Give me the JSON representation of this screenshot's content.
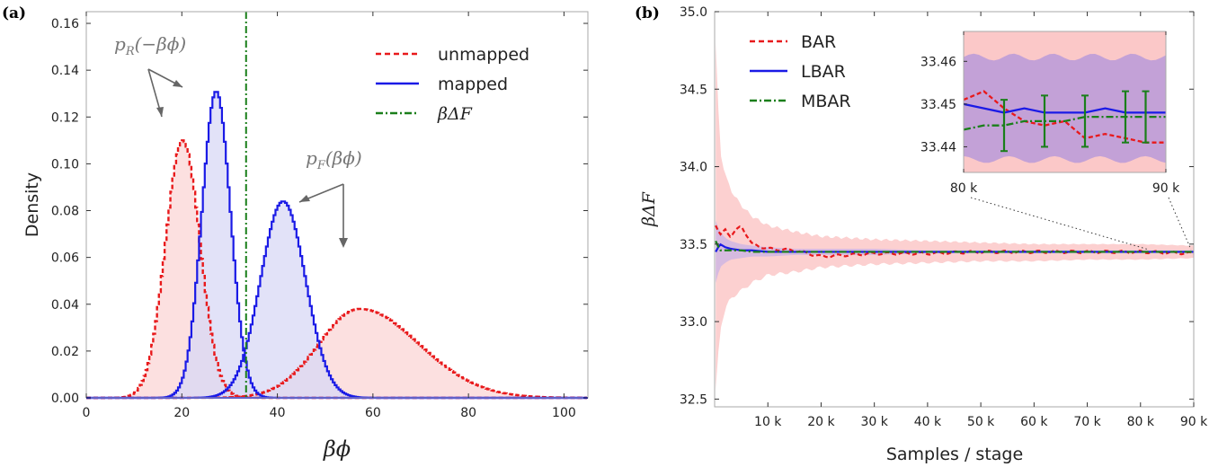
{
  "chart_data": [
    {
      "panel": "(a)",
      "type": "area",
      "xlabel": "βϕ",
      "ylabel": "Density",
      "xlim": [
        0,
        105
      ],
      "ylim": [
        0,
        0.165
      ],
      "xticks": [
        "0",
        "20",
        "40",
        "60",
        "80",
        "100"
      ],
      "yticks": [
        "0.00",
        "0.02",
        "0.04",
        "0.06",
        "0.08",
        "0.10",
        "0.12",
        "0.14",
        "0.16"
      ],
      "grid": false,
      "legend_position": "top-right",
      "legend": [
        "unmapped",
        "mapped",
        "βΔF"
      ],
      "annotations": [
        "p_R(−βϕ)",
        "p_F(βϕ)"
      ],
      "series": [
        {
          "name": "unmapped",
          "style": "dashed",
          "color": "#e8191b",
          "fill": "#fbd5d5",
          "curves": [
            {
              "label": "p_R(−βϕ)",
              "center": 20,
              "peak": 0.11,
              "sigma_left": 3.6,
              "sigma_right": 3.6
            },
            {
              "label": "p_F(βϕ)",
              "center": 57,
              "peak": 0.038,
              "sigma_left": 8.5,
              "sigma_right": 12.5
            }
          ]
        },
        {
          "name": "mapped",
          "style": "solid",
          "color": "#1a1ae6",
          "fill": "#d8d8f5",
          "curves": [
            {
              "label": "p_R(−βϕ)",
              "center": 27,
              "peak": 0.131,
              "sigma_left": 3.0,
              "sigma_right": 3.0
            },
            {
              "label": "p_F(βϕ)",
              "center": 41,
              "peak": 0.084,
              "sigma_left": 4.7,
              "sigma_right": 4.7
            }
          ]
        },
        {
          "name": "βΔF",
          "style": "dashdot",
          "color": "#1a7f1a",
          "x": 33.45
        }
      ]
    },
    {
      "panel": "(b)",
      "type": "line",
      "xlabel": "Samples / stage",
      "ylabel": "βΔF",
      "xlim": [
        0,
        90000
      ],
      "ylim": [
        32.45,
        35.0
      ],
      "xticks": [
        "10 k",
        "20 k",
        "30 k",
        "40 k",
        "50 k",
        "60 k",
        "70 k",
        "80 k",
        "90 k"
      ],
      "yticks": [
        "32.5",
        "33.0",
        "33.5",
        "34.0",
        "34.5",
        "35.0"
      ],
      "grid": false,
      "legend_position": "top-left",
      "legend": [
        "BAR",
        "LBAR",
        "MBAR"
      ],
      "x": [
        200,
        1000,
        2000,
        3000,
        5000,
        7000,
        10000,
        15000,
        20000,
        30000,
        40000,
        50000,
        60000,
        70000,
        80000,
        90000
      ],
      "series": [
        {
          "name": "BAR",
          "style": "dashed",
          "color": "#e8191b",
          "values": [
            33.62,
            33.55,
            33.6,
            33.55,
            33.62,
            33.5,
            33.47,
            33.46,
            33.42,
            33.44,
            33.44,
            33.45,
            33.45,
            33.45,
            33.45,
            33.44
          ]
        },
        {
          "name": "LBAR",
          "style": "solid",
          "color": "#1a1ae6",
          "values": [
            33.45,
            33.5,
            33.48,
            33.47,
            33.46,
            33.46,
            33.45,
            33.45,
            33.45,
            33.45,
            33.45,
            33.45,
            33.45,
            33.45,
            33.45,
            33.45
          ]
        },
        {
          "name": "MBAR",
          "style": "dashdot",
          "color": "#1a7f1a",
          "values": [
            33.52,
            33.46,
            33.46,
            33.46,
            33.46,
            33.45,
            33.45,
            33.45,
            33.45,
            33.45,
            33.45,
            33.45,
            33.45,
            33.45,
            33.45,
            33.45
          ]
        }
      ],
      "bands": [
        {
          "series": "BAR",
          "color": "#fbc8c8",
          "lower": [
            32.55,
            32.95,
            33.08,
            33.15,
            33.2,
            33.25,
            33.3,
            33.32,
            33.35,
            33.37,
            33.38,
            33.39,
            33.39,
            33.4,
            33.4,
            33.41
          ],
          "upper": [
            34.8,
            34.1,
            33.95,
            33.85,
            33.75,
            33.68,
            33.62,
            33.58,
            33.55,
            33.53,
            33.52,
            33.51,
            33.5,
            33.5,
            33.5,
            33.49
          ]
        },
        {
          "series": "LBAR",
          "color": "#c9b3e6",
          "lower": [
            33.25,
            33.35,
            33.38,
            33.4,
            33.41,
            33.42,
            33.42,
            33.43,
            33.43,
            33.43,
            33.44,
            33.44,
            33.44,
            33.44,
            33.44,
            33.44
          ],
          "upper": [
            33.65,
            33.58,
            33.54,
            33.52,
            33.5,
            33.49,
            33.48,
            33.47,
            33.47,
            33.47,
            33.46,
            33.46,
            33.46,
            33.46,
            33.46,
            33.46
          ]
        }
      ],
      "inset": {
        "xlim": [
          80000,
          90000
        ],
        "ylim": [
          33.434,
          33.467
        ],
        "xtick_labels": [
          "80 k",
          "90 k"
        ],
        "yticks": [
          "33.44",
          "33.45",
          "33.46"
        ],
        "x": [
          80000,
          81000,
          82000,
          83000,
          84000,
          85000,
          86000,
          87000,
          88000,
          89000,
          90000
        ],
        "BAR": [
          33.451,
          33.453,
          33.449,
          33.446,
          33.445,
          33.446,
          33.442,
          33.443,
          33.442,
          33.441,
          33.441
        ],
        "LBAR": [
          33.45,
          33.449,
          33.448,
          33.449,
          33.448,
          33.448,
          33.448,
          33.449,
          33.448,
          33.448,
          33.448
        ],
        "MBAR": [
          33.444,
          33.445,
          33.445,
          33.446,
          33.446,
          33.446,
          33.447,
          33.447,
          33.447,
          33.447,
          33.447
        ],
        "mbar_errorbars": {
          "x": [
            82000,
            84000,
            86000,
            88000,
            89000
          ],
          "center": [
            33.445,
            33.446,
            33.446,
            33.447,
            33.447
          ],
          "halfwidth": [
            0.006,
            0.006,
            0.006,
            0.006,
            0.006
          ]
        },
        "bar_band": [
          33.434,
          33.467
        ],
        "lbar_band": [
          33.437,
          33.461
        ]
      }
    }
  ]
}
